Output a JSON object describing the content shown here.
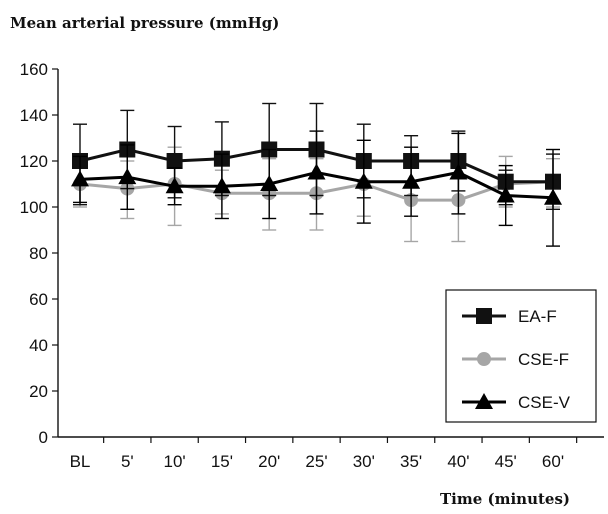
{
  "chart_data": {
    "type": "line",
    "ylabel": "Mean arterial pressure (mmHg)",
    "xlabel": "Time (minutes)",
    "ylim": [
      0,
      160
    ],
    "yticks": [
      0,
      20,
      40,
      60,
      80,
      100,
      120,
      140,
      160
    ],
    "categories": [
      "BL",
      "5'",
      "10'",
      "15'",
      "20'",
      "25'",
      "30'",
      "35'",
      "40'",
      "45'",
      "60'"
    ],
    "legend_position": "bottom-right",
    "series": [
      {
        "name": "EA-F",
        "color": "#111111",
        "marker": "square",
        "values": [
          120,
          125,
          120,
          121,
          125,
          125,
          120,
          120,
          120,
          111,
          111
        ],
        "err_low": [
          101,
          108,
          104,
          105,
          105,
          105,
          104,
          105,
          107,
          101,
          99
        ],
        "err_high": [
          136,
          142,
          135,
          137,
          145,
          145,
          136,
          131,
          133,
          116,
          123
        ]
      },
      {
        "name": "CSE-F",
        "color": "#a6a6a6",
        "marker": "circle",
        "values": [
          110,
          108,
          110,
          106,
          106,
          106,
          110,
          103,
          103,
          110,
          111
        ],
        "err_low": [
          100,
          95,
          92,
          97,
          90,
          90,
          96,
          85,
          85,
          100,
          100
        ],
        "err_high": [
          120,
          120,
          126,
          116,
          121,
          121,
          123,
          120,
          121,
          122,
          121
        ]
      },
      {
        "name": "CSE-V",
        "color": "#000000",
        "marker": "triangle",
        "values": [
          112,
          113,
          109,
          109,
          110,
          115,
          111,
          111,
          115,
          105,
          104
        ],
        "err_low": [
          102,
          99,
          101,
          95,
          95,
          97,
          93,
          96,
          97,
          92,
          83
        ],
        "err_high": [
          122,
          127,
          117,
          123,
          125,
          133,
          129,
          126,
          132,
          118,
          125
        ]
      }
    ]
  }
}
